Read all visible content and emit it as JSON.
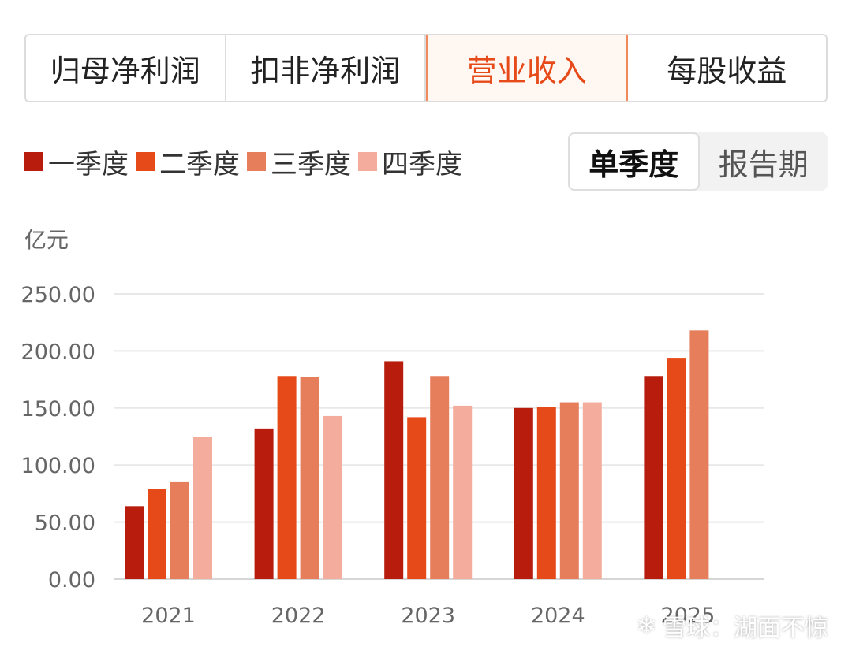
{
  "tabs": [
    {
      "label": "归母净利润",
      "active": false
    },
    {
      "label": "扣非净利润",
      "active": false
    },
    {
      "label": "营业收入",
      "active": true
    },
    {
      "label": "每股收益",
      "active": false
    }
  ],
  "legend": [
    {
      "label": "一季度",
      "color": "#b71c0c"
    },
    {
      "label": "二季度",
      "color": "#e64a19"
    },
    {
      "label": "三季度",
      "color": "#e67e5c"
    },
    {
      "label": "四季度",
      "color": "#f4ad9c"
    }
  ],
  "toggle": [
    {
      "label": "单季度",
      "active": true
    },
    {
      "label": "报告期",
      "active": false
    }
  ],
  "unit_label": "亿元",
  "watermark": {
    "logo": "❄",
    "text": "雪球：湖面不惊"
  },
  "chart_data": {
    "type": "bar",
    "categories": [
      "2021",
      "2022",
      "2023",
      "2024",
      "2025"
    ],
    "series": [
      {
        "name": "一季度",
        "color": "#b71c0c",
        "values": [
          64,
          132,
          191,
          150,
          178
        ]
      },
      {
        "name": "二季度",
        "color": "#e64a19",
        "values": [
          79,
          178,
          142,
          151,
          194
        ]
      },
      {
        "name": "三季度",
        "color": "#e67e5c",
        "values": [
          85,
          177,
          178,
          155,
          218
        ]
      },
      {
        "name": "四季度",
        "color": "#f4ad9c",
        "values": [
          125,
          143,
          152,
          155,
          null
        ]
      }
    ],
    "yticks": [
      "0.00",
      "50.00",
      "100.00",
      "150.00",
      "200.00",
      "250.00"
    ],
    "ylim": [
      0,
      250
    ],
    "ylabel": "亿元",
    "grid": true
  }
}
